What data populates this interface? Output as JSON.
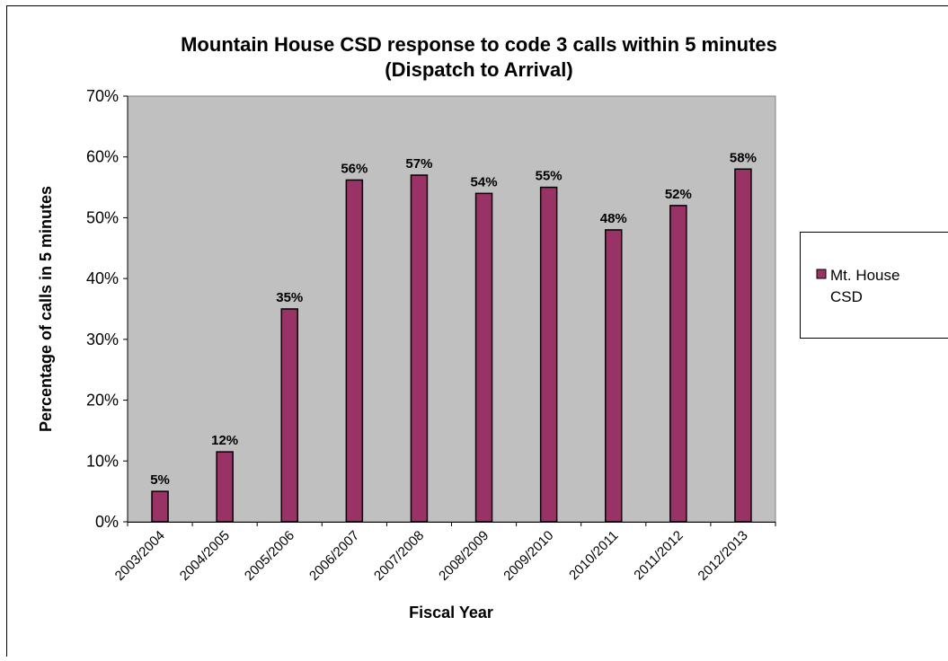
{
  "colors": {
    "bar": "#993366",
    "plot_background": "#c0c0c0",
    "axis": "#000000",
    "frame": "#000000"
  },
  "chart_data": {
    "type": "bar",
    "title": "Mountain House CSD response to code 3 calls within 5 minutes",
    "subtitle": "(Dispatch to Arrival)",
    "xlabel": "Fiscal Year",
    "ylabel": "Percentage of calls in 5 minutes",
    "ylim": [
      0,
      70
    ],
    "yticks": [
      "0%",
      "10%",
      "20%",
      "30%",
      "40%",
      "50%",
      "60%",
      "70%"
    ],
    "grid": false,
    "legend_position": "right",
    "categories": [
      "2003/2004",
      "2004/2005",
      "2005/2006",
      "2006/2007",
      "2007/2008",
      "2008/2009",
      "2009/2010",
      "2010/2011",
      "2011/2012",
      "2012/2013"
    ],
    "series": [
      {
        "name": "Mt. House CSD",
        "values": [
          5,
          11.5,
          35,
          56.2,
          57,
          54,
          55,
          48,
          52,
          58
        ],
        "data_labels": [
          "5%",
          "12%",
          "35%",
          "56%",
          "57%",
          "54%",
          "55%",
          "48%",
          "52%",
          "58%"
        ]
      }
    ]
  },
  "legend": {
    "line1": "Mt. House",
    "line2": "CSD"
  }
}
